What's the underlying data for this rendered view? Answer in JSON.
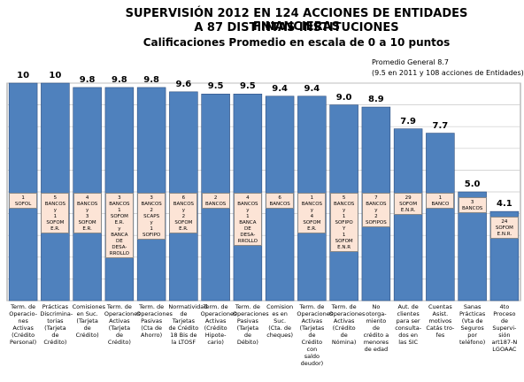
{
  "chart_data": {
    "type": "bar",
    "title": "SUPERVISIÓN 2012 EN 124 ACCIONES DE ENTIDADES FINANCIERAS",
    "title_line2": "A 87 DISTINTAS INSTITUCIONES",
    "subtitle": "Calificaciones Promedio en escala de 0 a 10 puntos",
    "note_line1": "Promedio General 8.7",
    "note_line2": "(9.5 en 2011 y 108 acciones de Entidades)",
    "ylim": [
      0,
      10
    ],
    "grid": true,
    "bar_color": "#4f81bd",
    "box_color": "#fce4d6",
    "categories": [
      "Term. de\nOperacio-\nnes\nActivas\n(Crédito\nPersonal)",
      "Prácticas\nDiscrimina-\ntorias\n(Tarjeta\nde\nCrédito)",
      "Comisiones\nen Suc.\n(Tarjeta de\nCrédito)",
      "Term. de\nOperaciones\nActivas\n(Tarjeta\nde\nCrédito)",
      "Term. de\nOperaciones\nPasivas\n(Cta de\nAhorro)",
      "Normatividad\nde\nTarjetas\nde Crédito\n18 Bis de\nla LTOSF",
      "Term. de\nOperaciones\nActivas\n(Crédito\nHipote-\ncario)",
      "Term. de\nOperaciones\nPasivas\n(Tarjeta\nde\nDébito)",
      "Comision\nes en\nSuc.\n(Cta. de\ncheques)",
      "Term. de\nOperaciones\nActivas\n(Tarjetas de\nCrédito con\nsaldo\ndeudor)",
      "Term. de\nOperaciones\nActivas\n(Crédito\nde\nNómina)",
      "No\notorga-\nmiento\nde\ncrédito a\nmenores\nde edad",
      "Aut. de\nclientes\npara ser\nconsulta-\ndos en\nlas SIC",
      "Cuentas\nAsist.\nmotivos\nCatás tro-\nfes",
      "Sanas\nPrácticas\n(Vta de\nSeguros\npor\nteléfono)",
      "4to\nProceso\nde\nSupervi-\nsión\nart187-N\nLGOAAC"
    ],
    "values": [
      10,
      10,
      9.8,
      9.8,
      9.8,
      9.6,
      9.5,
      9.5,
      9.4,
      9.4,
      9.0,
      8.9,
      7.9,
      7.7,
      5.0,
      4.1
    ],
    "value_labels": [
      "10",
      "10",
      "9.8",
      "9.8",
      "9.8",
      "9.6",
      "9.5",
      "9.5",
      "9.4",
      "9.4",
      "9.0",
      "8.9",
      "7.9",
      "7.7",
      "5.0",
      "4.1"
    ],
    "entities": [
      "1\nSOFOL",
      "5\nBANCOS\ny\n1\nSOFOM\nE.R.",
      "4\nBANCOS\ny\n3\nSOFOM\nE.R.",
      "3\nBANCOS\n1\nSOFOM\nE.R.\ny\nBANCA\nDE\nDESA-\nRROLLO",
      "3\nBANCOS\n2\nSCAPS\ny\n1\nSOFIPO",
      "6\nBANCOS\ny\n2\nSOFOM\nE.R.",
      "2\nBANCOS",
      "4\nBANCOS\ny\n1\nBANCA\nDE\nDESA-\nRROLLO",
      "6\nBANCOS",
      "1\nBANCOS\ny\n4\nSOFOM\nE.R.",
      "5\nBANCOS\ny\n1\nSOFIPO\nY\n1\nSOFOM\nE.N.R",
      "7\nBANCOS\ny\n2\nSOFIPOS",
      "29\nSOFOM\nE.N.R.",
      "1\nBANCO",
      "3\nBANCOS",
      "24\nSOFOM\nE.N.R."
    ]
  }
}
